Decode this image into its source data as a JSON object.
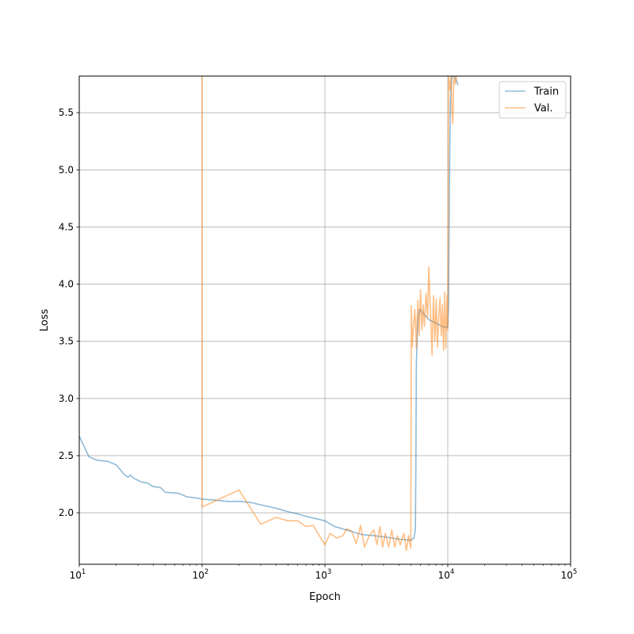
{
  "chart_data": {
    "type": "line",
    "xlabel": "Epoch",
    "ylabel": "Loss",
    "xscale": "log",
    "xlim": [
      10,
      100000
    ],
    "ylim": [
      1.55,
      5.82
    ],
    "grid": true,
    "legend_position": "top-right",
    "x_tick_labels": [
      {
        "base": "10",
        "exp": "1"
      },
      {
        "base": "10",
        "exp": "2"
      },
      {
        "base": "10",
        "exp": "3"
      },
      {
        "base": "10",
        "exp": "4"
      },
      {
        "base": "10",
        "exp": "5"
      }
    ],
    "y_tick_labels": [
      "2.0",
      "2.5",
      "3.0",
      "3.5",
      "4.0",
      "4.5",
      "5.0",
      "5.5"
    ],
    "series": [
      {
        "name": "Train",
        "color": "#1f77b4",
        "points": [
          [
            10,
            2.67
          ],
          [
            12,
            2.49
          ],
          [
            14,
            2.46
          ],
          [
            17,
            2.45
          ],
          [
            20,
            2.42
          ],
          [
            23,
            2.34
          ],
          [
            25,
            2.31
          ],
          [
            26,
            2.33
          ],
          [
            28,
            2.3
          ],
          [
            32,
            2.27
          ],
          [
            36,
            2.26
          ],
          [
            40,
            2.23
          ],
          [
            46,
            2.22
          ],
          [
            50,
            2.18
          ],
          [
            65,
            2.17
          ],
          [
            75,
            2.14
          ],
          [
            90,
            2.13
          ],
          [
            100,
            2.12
          ],
          [
            130,
            2.11
          ],
          [
            160,
            2.1
          ],
          [
            200,
            2.1
          ],
          [
            250,
            2.09
          ],
          [
            300,
            2.07
          ],
          [
            400,
            2.04
          ],
          [
            500,
            2.01
          ],
          [
            600,
            1.99
          ],
          [
            700,
            1.97
          ],
          [
            1000,
            1.93
          ],
          [
            1200,
            1.88
          ],
          [
            1500,
            1.85
          ],
          [
            2000,
            1.81
          ],
          [
            2500,
            1.8
          ],
          [
            3000,
            1.79
          ],
          [
            4000,
            1.77
          ],
          [
            5000,
            1.76
          ],
          [
            5300,
            1.78
          ],
          [
            5450,
            1.85
          ],
          [
            5500,
            2.4
          ],
          [
            5550,
            3.3
          ],
          [
            5700,
            3.68
          ],
          [
            5900,
            3.78
          ],
          [
            6500,
            3.73
          ],
          [
            7000,
            3.69
          ],
          [
            8000,
            3.66
          ],
          [
            9000,
            3.63
          ],
          [
            9800,
            3.62
          ],
          [
            10000,
            3.63
          ],
          [
            10150,
            3.8
          ],
          [
            10300,
            4.8
          ],
          [
            10500,
            5.6
          ],
          [
            10800,
            5.82
          ],
          [
            11300,
            5.82
          ],
          [
            11800,
            5.78
          ],
          [
            12100,
            5.74
          ]
        ]
      },
      {
        "name": "Val.",
        "color": "#ff7f0e",
        "points": [
          [
            100,
            5.82
          ],
          [
            100,
            2.05
          ],
          [
            200,
            2.2
          ],
          [
            300,
            1.9
          ],
          [
            400,
            1.96
          ],
          [
            500,
            1.93
          ],
          [
            600,
            1.93
          ],
          [
            700,
            1.88
          ],
          [
            800,
            1.89
          ],
          [
            1000,
            1.72
          ],
          [
            1100,
            1.82
          ],
          [
            1250,
            1.78
          ],
          [
            1400,
            1.8
          ],
          [
            1500,
            1.86
          ],
          [
            1650,
            1.84
          ],
          [
            1800,
            1.73
          ],
          [
            1950,
            1.89
          ],
          [
            2100,
            1.7
          ],
          [
            2300,
            1.8
          ],
          [
            2500,
            1.85
          ],
          [
            2650,
            1.72
          ],
          [
            2800,
            1.88
          ],
          [
            2950,
            1.7
          ],
          [
            3100,
            1.82
          ],
          [
            3300,
            1.7
          ],
          [
            3500,
            1.85
          ],
          [
            3700,
            1.7
          ],
          [
            3900,
            1.8
          ],
          [
            4100,
            1.72
          ],
          [
            4400,
            1.82
          ],
          [
            4600,
            1.67
          ],
          [
            4800,
            1.8
          ],
          [
            5000,
            1.69
          ],
          [
            5050,
            3.81
          ],
          [
            5150,
            3.45
          ],
          [
            5250,
            3.62
          ],
          [
            5400,
            3.78
          ],
          [
            5550,
            3.44
          ],
          [
            5700,
            3.86
          ],
          [
            5850,
            3.55
          ],
          [
            6000,
            3.95
          ],
          [
            6150,
            3.6
          ],
          [
            6300,
            3.82
          ],
          [
            6450,
            3.63
          ],
          [
            6650,
            3.92
          ],
          [
            6850,
            3.7
          ],
          [
            7000,
            4.15
          ],
          [
            7250,
            3.72
          ],
          [
            7450,
            3.38
          ],
          [
            7650,
            3.9
          ],
          [
            7850,
            3.5
          ],
          [
            8050,
            3.87
          ],
          [
            8250,
            3.45
          ],
          [
            8450,
            3.72
          ],
          [
            8650,
            3.88
          ],
          [
            8850,
            3.55
          ],
          [
            9050,
            3.82
          ],
          [
            9250,
            3.42
          ],
          [
            9450,
            3.93
          ],
          [
            9650,
            3.44
          ],
          [
            9850,
            3.9
          ],
          [
            10000,
            3.6
          ],
          [
            10150,
            5.82
          ],
          [
            10400,
            5.7
          ],
          [
            10600,
            5.82
          ],
          [
            10800,
            5.52
          ],
          [
            11000,
            5.4
          ],
          [
            11200,
            5.82
          ],
          [
            11500,
            5.75
          ],
          [
            11800,
            5.82
          ]
        ]
      }
    ]
  }
}
